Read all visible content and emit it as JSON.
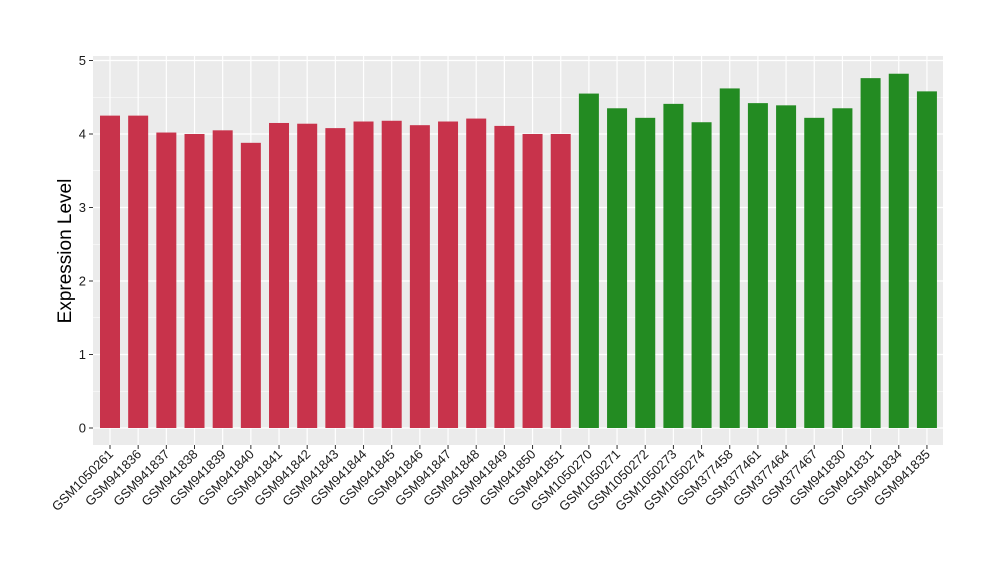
{
  "chart_data": {
    "type": "bar",
    "title": "",
    "xlabel": "",
    "ylabel": "Expression Level",
    "ylim": [
      0,
      5
    ],
    "yticks": [
      0,
      1,
      2,
      3,
      4,
      5
    ],
    "grid": true,
    "legend": "none",
    "categories": [
      "GSM1050261",
      "GSM941836",
      "GSM941837",
      "GSM941838",
      "GSM941839",
      "GSM941840",
      "GSM941841",
      "GSM941842",
      "GSM941843",
      "GSM941844",
      "GSM941845",
      "GSM941846",
      "GSM941847",
      "GSM941848",
      "GSM941849",
      "GSM941850",
      "GSM941851",
      "GSM1050270",
      "GSM1050271",
      "GSM1050272",
      "GSM1050273",
      "GSM1050274",
      "GSM377458",
      "GSM377461",
      "GSM377464",
      "GSM377467",
      "GSM941830",
      "GSM941831",
      "GSM941834",
      "GSM941835"
    ],
    "values": [
      4.25,
      4.25,
      4.02,
      4.0,
      4.05,
      3.88,
      4.15,
      4.14,
      4.08,
      4.17,
      4.18,
      4.12,
      4.17,
      4.21,
      4.11,
      4.0,
      4.0,
      4.55,
      4.35,
      4.22,
      4.41,
      4.16,
      4.62,
      4.42,
      4.39,
      4.22,
      4.35,
      4.76,
      4.82,
      4.58
    ],
    "group": [
      0,
      0,
      0,
      0,
      0,
      0,
      0,
      0,
      0,
      0,
      0,
      0,
      0,
      0,
      0,
      0,
      0,
      1,
      1,
      1,
      1,
      1,
      1,
      1,
      1,
      1,
      1,
      1,
      1,
      1
    ],
    "colors": [
      "#c8334b",
      "#238b22"
    ],
    "panel_background": "#ebebeb",
    "grid_color": "#ffffff"
  }
}
